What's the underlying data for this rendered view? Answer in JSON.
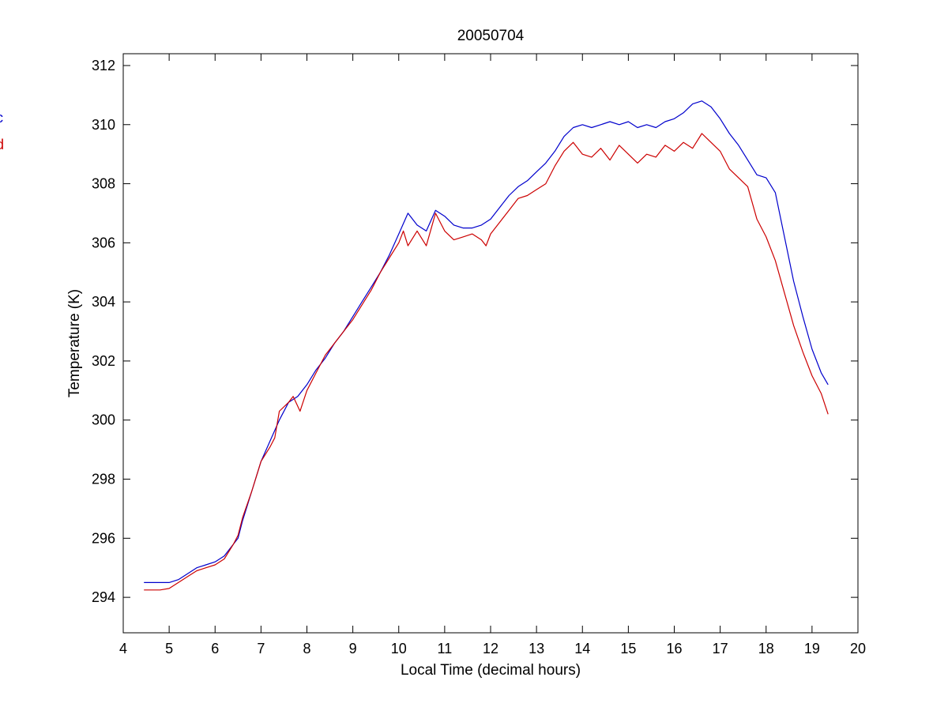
{
  "chart_data": {
    "type": "line",
    "title": "20050704",
    "xlabel": "Local Time (decimal hours)",
    "ylabel": "Temperature (K)",
    "xlim": [
      4,
      20
    ],
    "ylim": [
      292.8,
      312.4
    ],
    "x_ticks": [
      4,
      5,
      6,
      7,
      8,
      9,
      10,
      11,
      12,
      13,
      14,
      15,
      16,
      17,
      18,
      19,
      20
    ],
    "y_ticks": [
      294,
      296,
      298,
      300,
      302,
      304,
      306,
      308,
      310,
      312
    ],
    "grid": false,
    "legend_placement": "left outside (clipped)",
    "series": [
      {
        "name": "c",
        "color": "#0000cc",
        "points": [
          [
            4.45,
            294.5
          ],
          [
            4.8,
            294.5
          ],
          [
            5.0,
            294.5
          ],
          [
            5.2,
            294.6
          ],
          [
            5.4,
            294.8
          ],
          [
            5.6,
            295.0
          ],
          [
            5.8,
            295.1
          ],
          [
            6.0,
            295.2
          ],
          [
            6.2,
            295.4
          ],
          [
            6.4,
            295.8
          ],
          [
            6.5,
            296.0
          ],
          [
            6.6,
            296.6
          ],
          [
            6.8,
            297.6
          ],
          [
            7.0,
            298.6
          ],
          [
            7.2,
            299.3
          ],
          [
            7.4,
            300.0
          ],
          [
            7.6,
            300.6
          ],
          [
            7.8,
            300.8
          ],
          [
            8.0,
            301.2
          ],
          [
            8.2,
            301.7
          ],
          [
            8.4,
            302.1
          ],
          [
            8.6,
            302.6
          ],
          [
            8.8,
            303.0
          ],
          [
            9.0,
            303.5
          ],
          [
            9.2,
            304.0
          ],
          [
            9.4,
            304.5
          ],
          [
            9.6,
            305.0
          ],
          [
            9.8,
            305.6
          ],
          [
            10.0,
            306.3
          ],
          [
            10.2,
            307.0
          ],
          [
            10.4,
            306.6
          ],
          [
            10.6,
            306.4
          ],
          [
            10.8,
            307.1
          ],
          [
            11.0,
            306.9
          ],
          [
            11.2,
            306.6
          ],
          [
            11.4,
            306.5
          ],
          [
            11.6,
            306.5
          ],
          [
            11.8,
            306.6
          ],
          [
            12.0,
            306.8
          ],
          [
            12.2,
            307.2
          ],
          [
            12.4,
            307.6
          ],
          [
            12.6,
            307.9
          ],
          [
            12.8,
            308.1
          ],
          [
            13.0,
            308.4
          ],
          [
            13.2,
            308.7
          ],
          [
            13.4,
            309.1
          ],
          [
            13.6,
            309.6
          ],
          [
            13.8,
            309.9
          ],
          [
            14.0,
            310.0
          ],
          [
            14.2,
            309.9
          ],
          [
            14.4,
            310.0
          ],
          [
            14.6,
            310.1
          ],
          [
            14.8,
            310.0
          ],
          [
            15.0,
            310.1
          ],
          [
            15.2,
            309.9
          ],
          [
            15.4,
            310.0
          ],
          [
            15.6,
            309.9
          ],
          [
            15.8,
            310.1
          ],
          [
            16.0,
            310.2
          ],
          [
            16.2,
            310.4
          ],
          [
            16.4,
            310.7
          ],
          [
            16.6,
            310.8
          ],
          [
            16.8,
            310.6
          ],
          [
            17.0,
            310.2
          ],
          [
            17.2,
            309.7
          ],
          [
            17.4,
            309.3
          ],
          [
            17.6,
            308.8
          ],
          [
            17.8,
            308.3
          ],
          [
            18.0,
            308.2
          ],
          [
            18.2,
            307.7
          ],
          [
            18.4,
            306.2
          ],
          [
            18.6,
            304.7
          ],
          [
            18.8,
            303.5
          ],
          [
            19.0,
            302.4
          ],
          [
            19.2,
            301.6
          ],
          [
            19.35,
            301.2
          ]
        ]
      },
      {
        "name": "d",
        "color": "#cc0000",
        "points": [
          [
            4.45,
            294.25
          ],
          [
            4.8,
            294.25
          ],
          [
            5.0,
            294.3
          ],
          [
            5.2,
            294.5
          ],
          [
            5.4,
            294.7
          ],
          [
            5.6,
            294.9
          ],
          [
            5.8,
            295.0
          ],
          [
            6.0,
            295.1
          ],
          [
            6.2,
            295.3
          ],
          [
            6.4,
            295.8
          ],
          [
            6.5,
            296.1
          ],
          [
            6.6,
            296.7
          ],
          [
            6.8,
            297.6
          ],
          [
            7.0,
            298.6
          ],
          [
            7.2,
            299.1
          ],
          [
            7.3,
            299.4
          ],
          [
            7.4,
            300.3
          ],
          [
            7.6,
            300.6
          ],
          [
            7.7,
            300.8
          ],
          [
            7.85,
            300.3
          ],
          [
            8.0,
            301.0
          ],
          [
            8.2,
            301.6
          ],
          [
            8.4,
            302.2
          ],
          [
            8.6,
            302.6
          ],
          [
            8.8,
            303.0
          ],
          [
            9.0,
            303.4
          ],
          [
            9.2,
            303.9
          ],
          [
            9.4,
            304.4
          ],
          [
            9.6,
            305.0
          ],
          [
            9.8,
            305.5
          ],
          [
            10.0,
            306.0
          ],
          [
            10.1,
            306.4
          ],
          [
            10.2,
            305.9
          ],
          [
            10.4,
            306.4
          ],
          [
            10.6,
            305.9
          ],
          [
            10.8,
            307.0
          ],
          [
            11.0,
            306.4
          ],
          [
            11.2,
            306.1
          ],
          [
            11.4,
            306.2
          ],
          [
            11.6,
            306.3
          ],
          [
            11.8,
            306.1
          ],
          [
            11.9,
            305.9
          ],
          [
            12.0,
            306.3
          ],
          [
            12.2,
            306.7
          ],
          [
            12.4,
            307.1
          ],
          [
            12.6,
            307.5
          ],
          [
            12.8,
            307.6
          ],
          [
            13.0,
            307.8
          ],
          [
            13.2,
            308.0
          ],
          [
            13.4,
            308.6
          ],
          [
            13.6,
            309.1
          ],
          [
            13.8,
            309.4
          ],
          [
            14.0,
            309.0
          ],
          [
            14.2,
            308.9
          ],
          [
            14.4,
            309.2
          ],
          [
            14.6,
            308.8
          ],
          [
            14.8,
            309.3
          ],
          [
            15.0,
            309.0
          ],
          [
            15.2,
            308.7
          ],
          [
            15.4,
            309.0
          ],
          [
            15.6,
            308.9
          ],
          [
            15.8,
            309.3
          ],
          [
            16.0,
            309.1
          ],
          [
            16.2,
            309.4
          ],
          [
            16.4,
            309.2
          ],
          [
            16.6,
            309.7
          ],
          [
            16.8,
            309.4
          ],
          [
            17.0,
            309.1
          ],
          [
            17.2,
            308.5
          ],
          [
            17.4,
            308.2
          ],
          [
            17.6,
            307.9
          ],
          [
            17.8,
            306.8
          ],
          [
            18.0,
            306.2
          ],
          [
            18.2,
            305.4
          ],
          [
            18.4,
            304.3
          ],
          [
            18.6,
            303.2
          ],
          [
            18.8,
            302.3
          ],
          [
            19.0,
            301.5
          ],
          [
            19.2,
            300.9
          ],
          [
            19.35,
            300.2
          ]
        ]
      }
    ]
  }
}
